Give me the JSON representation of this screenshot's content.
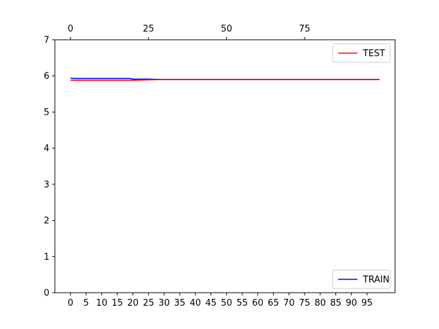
{
  "chart_data": {
    "type": "line",
    "title": "",
    "xlabel": "",
    "ylabel": "",
    "grid": false,
    "xlim": [
      -5,
      104
    ],
    "ylim": [
      0,
      7
    ],
    "bottom_xticks": [
      0,
      5,
      10,
      15,
      20,
      25,
      30,
      35,
      40,
      45,
      50,
      55,
      60,
      65,
      70,
      75,
      80,
      85,
      90,
      95
    ],
    "top_xticks": [
      0,
      25,
      50,
      75
    ],
    "yticks": [
      0,
      1,
      2,
      3,
      4,
      5,
      6,
      7
    ],
    "series": [
      {
        "name": "TRAIN",
        "color": "#0000ff",
        "axis": "bottom",
        "x": [
          0,
          1,
          5,
          10,
          15,
          19,
          20,
          25,
          30,
          40,
          50,
          60,
          70,
          80,
          90,
          99
        ],
        "y": [
          5.94,
          5.93,
          5.93,
          5.93,
          5.93,
          5.93,
          5.91,
          5.91,
          5.9,
          5.9,
          5.9,
          5.9,
          5.9,
          5.9,
          5.9,
          5.9
        ],
        "legend_position": "lower right"
      },
      {
        "name": "TEST",
        "color": "#ff0000",
        "axis": "bottom",
        "x": [
          0,
          5,
          10,
          15,
          20,
          25,
          30,
          40,
          50,
          60,
          70,
          80,
          90,
          99
        ],
        "y": [
          5.88,
          5.88,
          5.88,
          5.88,
          5.88,
          5.89,
          5.9,
          5.9,
          5.9,
          5.9,
          5.9,
          5.9,
          5.9,
          5.9
        ],
        "legend_position": "upper right"
      }
    ]
  }
}
